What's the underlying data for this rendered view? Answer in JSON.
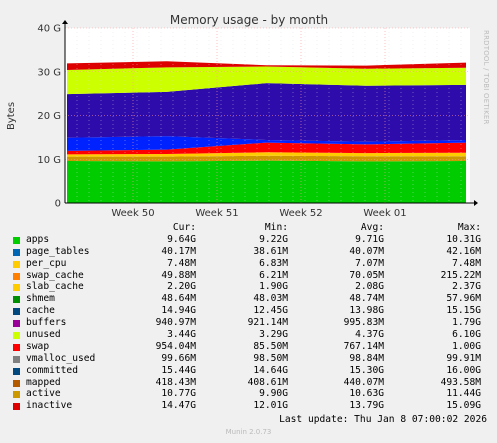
{
  "chart_data": {
    "type": "area",
    "title": "Memory usage - by month",
    "ylabel": "Bytes",
    "ylim": [
      0,
      40
    ],
    "y_unit": "G",
    "y_ticks": [
      "0",
      "10 G",
      "20 G",
      "30 G",
      "40 G"
    ],
    "y_tick_values": [
      0,
      10,
      20,
      30,
      40
    ],
    "x_ticks": [
      "Week 50",
      "Week 51",
      "Week 52",
      "Week 01"
    ],
    "grid": true,
    "side_label": "RRDTOOL / TOBI OETIKER",
    "stacked_series": [
      {
        "name": "apps",
        "color": "#00cc00",
        "segments": [
          [
            0,
            9.6
          ],
          [
            0.25,
            9.5
          ],
          [
            0.5,
            9.7
          ],
          [
            0.75,
            9.5
          ],
          [
            1,
            9.6
          ]
        ]
      },
      {
        "name": "active",
        "color": "#cc9900",
        "segments": [
          [
            0,
            1.0
          ],
          [
            0.25,
            1.1
          ],
          [
            0.5,
            1.1
          ],
          [
            0.75,
            1.2
          ],
          [
            1,
            1.1
          ]
        ]
      },
      {
        "name": "slab_cache",
        "color": "#ffcc00",
        "segments": [
          [
            0,
            0.5
          ],
          [
            0.25,
            0.6
          ],
          [
            0.5,
            0.8
          ],
          [
            0.75,
            0.7
          ],
          [
            1,
            0.8
          ]
        ]
      },
      {
        "name": "swap",
        "color": "#ff0000",
        "segments": [
          [
            0,
            0.8
          ],
          [
            0.25,
            1.0
          ],
          [
            0.5,
            2.2
          ],
          [
            0.75,
            2.0
          ],
          [
            1,
            2.3
          ]
        ]
      },
      {
        "name": "cache",
        "color": "#0022ff",
        "segments": [
          [
            0,
            3.0
          ],
          [
            0.25,
            3.1
          ],
          [
            0.5,
            0.6
          ],
          [
            0.75,
            0.6
          ],
          [
            1,
            0.6
          ]
        ]
      },
      {
        "name": "buffers",
        "color": "#2e0bab",
        "segments": [
          [
            0,
            10.0
          ],
          [
            0.25,
            10.1
          ],
          [
            0.5,
            13.0
          ],
          [
            0.75,
            12.8
          ],
          [
            1,
            12.6
          ]
        ]
      },
      {
        "name": "unused",
        "color": "#ccff00",
        "segments": [
          [
            0,
            5.5
          ],
          [
            0.25,
            5.6
          ],
          [
            0.5,
            3.8
          ],
          [
            0.75,
            3.9
          ],
          [
            1,
            3.9
          ]
        ]
      },
      {
        "name": "inactive",
        "color": "#dd0000",
        "segments": [
          [
            0,
            1.5
          ],
          [
            0.25,
            1.4
          ],
          [
            0.5,
            0.3
          ],
          [
            0.75,
            0.7
          ],
          [
            1,
            1.2
          ]
        ]
      }
    ]
  },
  "legend": {
    "headers": [
      "Cur:",
      "Min:",
      "Avg:",
      "Max:"
    ],
    "rows": [
      {
        "name": "apps",
        "color": "#00cc00",
        "cur": "9.64G",
        "min": "9.22G",
        "avg": "9.71G",
        "max": "10.31G"
      },
      {
        "name": "page_tables",
        "color": "#0066b3",
        "cur": "40.17M",
        "min": "38.61M",
        "avg": "40.07M",
        "max": "42.16M"
      },
      {
        "name": "per_cpu",
        "color": "#ffcc00",
        "cur": "7.48M",
        "min": "6.83M",
        "avg": "7.07M",
        "max": "7.48M"
      },
      {
        "name": "swap_cache",
        "color": "#ff8000",
        "cur": "49.88M",
        "min": "6.21M",
        "avg": "70.05M",
        "max": "215.22M"
      },
      {
        "name": "slab_cache",
        "color": "#ffcc00",
        "cur": "2.20G",
        "min": "1.90G",
        "avg": "2.08G",
        "max": "2.37G"
      },
      {
        "name": "shmem",
        "color": "#008f00",
        "cur": "48.64M",
        "min": "48.03M",
        "avg": "48.74M",
        "max": "57.96M"
      },
      {
        "name": "cache",
        "color": "#00487d",
        "cur": "14.94G",
        "min": "12.45G",
        "avg": "13.98G",
        "max": "15.15G"
      },
      {
        "name": "buffers",
        "color": "#990099",
        "cur": "940.97M",
        "min": "921.14M",
        "avg": "995.83M",
        "max": "1.79G"
      },
      {
        "name": "unused",
        "color": "#ccff00",
        "cur": "3.44G",
        "min": "3.29G",
        "avg": "4.37G",
        "max": "6.10G"
      },
      {
        "name": "swap",
        "color": "#ff0000",
        "cur": "954.04M",
        "min": "85.50M",
        "avg": "767.14M",
        "max": "1.00G"
      },
      {
        "name": "vmalloc_used",
        "color": "#808080",
        "cur": "99.66M",
        "min": "98.50M",
        "avg": "98.84M",
        "max": "99.91M"
      },
      {
        "name": "committed",
        "color": "#00487d",
        "cur": "15.44G",
        "min": "14.64G",
        "avg": "15.30G",
        "max": "16.00G"
      },
      {
        "name": "mapped",
        "color": "#b35a00",
        "cur": "418.43M",
        "min": "408.61M",
        "avg": "440.07M",
        "max": "493.58M"
      },
      {
        "name": "active",
        "color": "#cc9900",
        "cur": "10.77G",
        "min": "9.90G",
        "avg": "10.63G",
        "max": "11.44G"
      },
      {
        "name": "inactive",
        "color": "#dd0000",
        "cur": "14.47G",
        "min": "12.01G",
        "avg": "13.79G",
        "max": "15.09G"
      }
    ]
  },
  "footer": {
    "last_update": "Last update: Thu Jan  8 07:00:02 2026",
    "munin": "Munin 2.0.73"
  }
}
